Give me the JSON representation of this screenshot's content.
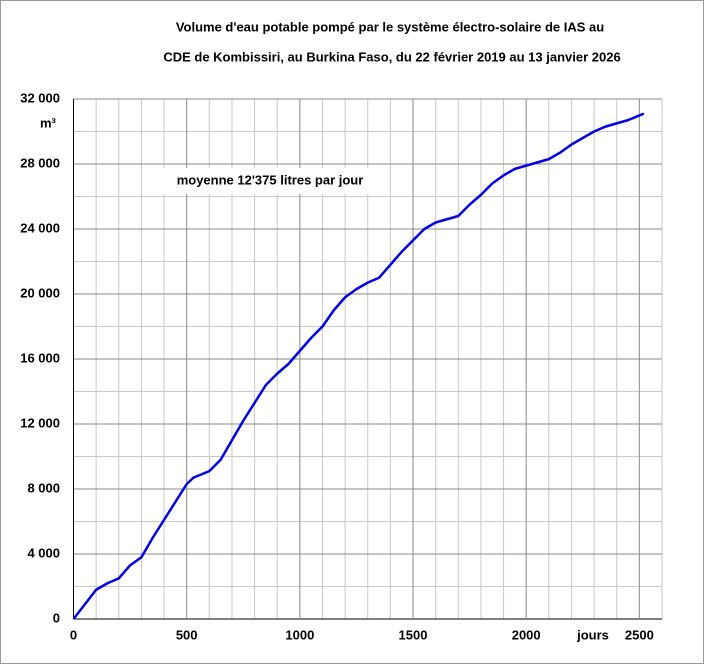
{
  "chart_data": {
    "type": "line",
    "title": [
      "Volume d'eau potable pompé par le système électro-solaire de IAS au",
      "CDE de Kombissiri, au Burkina Faso, du 22 février 2019 au 13 janvier 2026"
    ],
    "y_unit": "m³",
    "x_unit": "jours",
    "annotation": "moyenne  12'375 litres par jour",
    "color": "#0000e0",
    "x": [
      0,
      50,
      100,
      150,
      200,
      250,
      300,
      350,
      400,
      450,
      500,
      530,
      600,
      650,
      700,
      750,
      800,
      850,
      900,
      950,
      1000,
      1050,
      1100,
      1150,
      1200,
      1250,
      1300,
      1350,
      1400,
      1450,
      1500,
      1550,
      1600,
      1650,
      1700,
      1750,
      1800,
      1850,
      1900,
      1950,
      2000,
      2050,
      2100,
      2150,
      2200,
      2250,
      2300,
      2350,
      2400,
      2450,
      2520
    ],
    "values": [
      0,
      900,
      1800,
      2200,
      2500,
      3300,
      3800,
      5000,
      6100,
      7200,
      8300,
      8700,
      9100,
      9800,
      11000,
      12200,
      13300,
      14400,
      15100,
      15700,
      16500,
      17300,
      18000,
      19000,
      19800,
      20300,
      20700,
      21000,
      21800,
      22600,
      23300,
      24000,
      24400,
      24600,
      24800,
      25500,
      26100,
      26800,
      27300,
      27700,
      27900,
      28100,
      28300,
      28700,
      29200,
      29600,
      30000,
      30300,
      30500,
      30700,
      31100
    ],
    "xlim": [
      0,
      2600
    ],
    "ylim": [
      0,
      32000
    ],
    "xticks": [
      0,
      500,
      1000,
      1500,
      2000,
      2500
    ],
    "yticks": [
      0,
      {
        "value": 4000,
        "label": "4 000"
      },
      {
        "value": 8000,
        "label": "8 000"
      },
      {
        "value": 12000,
        "label": "12 000"
      },
      {
        "value": 16000,
        "label": "16 000"
      },
      {
        "value": 20000,
        "label": "20 000"
      },
      {
        "value": 24000,
        "label": "24 000"
      },
      {
        "value": 28000,
        "label": "28 000"
      },
      {
        "value": 32000,
        "label": "32 000"
      }
    ],
    "xminorticks": [
      100,
      200,
      300,
      400,
      600,
      700,
      800,
      900,
      1100,
      1200,
      1300,
      1400,
      1600,
      1700,
      1800,
      1900,
      2100,
      2200,
      2300,
      2400,
      2600
    ],
    "yminorticks": [
      2000,
      6000,
      10000,
      14000,
      18000,
      22000,
      26000,
      30000
    ],
    "grid": true
  }
}
